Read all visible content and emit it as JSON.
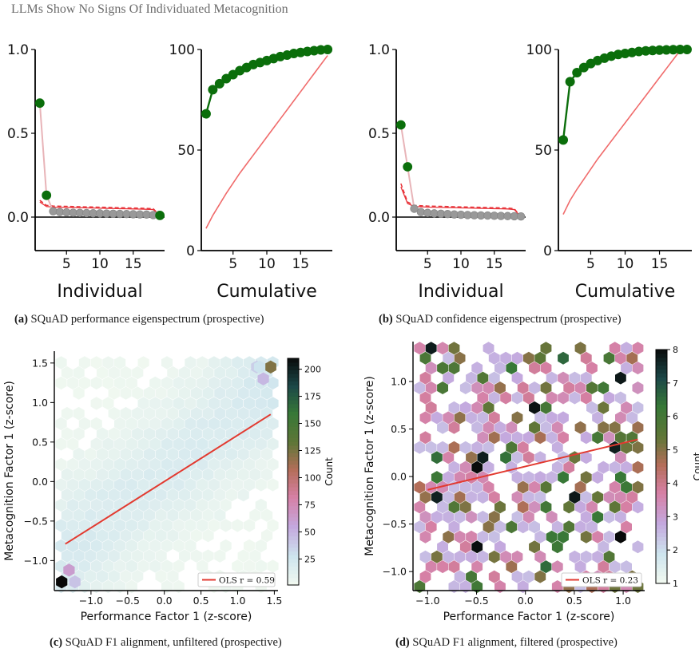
{
  "header": {
    "running_title": "LLMs Show No Signs Of Individuated Metacognition"
  },
  "captions": {
    "a": {
      "label": "(a)",
      "text": "SQuAD performance eigenspectrum (prospective)"
    },
    "b": {
      "label": "(b)",
      "text": "SQuAD confidence eigenspectrum (prospective)"
    },
    "c": {
      "label": "(c)",
      "text": "SQuAD F1 alignment, unfiltered (prospective)"
    },
    "d": {
      "label": "(d)",
      "text": "SQuAD F1 alignment, filtered (prospective)"
    }
  },
  "colors": {
    "green": "#0b6e0b",
    "grey": "#999999",
    "red": "#f06b6b",
    "dashed_red": "#e8343a",
    "pink_line": "#e8b4b8"
  },
  "chart_data": [
    {
      "panel": "a-individual",
      "type": "scatter",
      "xlabel": "Individual",
      "xlim": [
        0.3,
        19.7
      ],
      "ylim": [
        -0.2,
        1.0
      ],
      "xticks": [
        "5",
        "10",
        "15"
      ],
      "yticks": [
        "0.0",
        "0.5",
        "1.0"
      ],
      "components": [
        1,
        2,
        3,
        4,
        5,
        6,
        7,
        8,
        9,
        10,
        11,
        12,
        13,
        14,
        15,
        16,
        17,
        18,
        19
      ],
      "eigenvalues": [
        0.68,
        0.13,
        0.035,
        0.03,
        0.028,
        0.026,
        0.025,
        0.024,
        0.023,
        0.022,
        0.021,
        0.02,
        0.019,
        0.018,
        0.017,
        0.016,
        0.015,
        0.012,
        0.01
      ],
      "significant": [
        1,
        2,
        19
      ],
      "null_threshold": [
        0.1,
        0.07,
        0.066,
        0.065,
        0.064,
        0.063,
        0.062,
        0.061,
        0.06,
        0.059,
        0.058,
        0.057,
        0.056,
        0.055,
        0.054,
        0.053,
        0.052,
        0.05,
        0.01
      ]
    },
    {
      "panel": "a-cumulative",
      "type": "line",
      "xlabel": "Cumulative",
      "xlim": [
        0.3,
        19.7
      ],
      "ylim": [
        0,
        100
      ],
      "xticks": [
        "5",
        "10",
        "15"
      ],
      "yticks": [
        "0",
        "50",
        "100"
      ],
      "components": [
        1,
        2,
        3,
        4,
        5,
        6,
        7,
        8,
        9,
        10,
        11,
        12,
        13,
        14,
        15,
        16,
        17,
        18,
        19
      ],
      "cumulative": [
        68,
        80,
        83,
        85.5,
        87.5,
        89.5,
        91,
        92.5,
        93.5,
        94.5,
        95.5,
        96.5,
        97.2,
        98,
        98.5,
        99,
        99.4,
        99.8,
        100
      ],
      "null_cumulative": [
        11,
        17.5,
        23,
        28.5,
        33.5,
        38.5,
        43,
        47.5,
        52,
        56.5,
        61,
        65.5,
        70,
        74.5,
        79,
        83.5,
        88,
        92.5,
        97
      ]
    },
    {
      "panel": "b-individual",
      "type": "scatter",
      "xlabel": "Individual",
      "xlim": [
        0.3,
        19.7
      ],
      "ylim": [
        -0.2,
        1.0
      ],
      "xticks": [
        "5",
        "10",
        "15"
      ],
      "yticks": [
        "0.0",
        "0.5",
        "1.0"
      ],
      "components": [
        1,
        2,
        3,
        4,
        5,
        6,
        7,
        8,
        9,
        10,
        11,
        12,
        13,
        14,
        15,
        16,
        17,
        18,
        19
      ],
      "eigenvalues": [
        0.55,
        0.3,
        0.05,
        0.03,
        0.025,
        0.022,
        0.02,
        0.018,
        0.016,
        0.014,
        0.012,
        0.011,
        0.01,
        0.009,
        0.008,
        0.007,
        0.006,
        0.005,
        0.004
      ],
      "significant": [
        1,
        2
      ],
      "null_threshold": [
        0.2,
        0.09,
        0.07,
        0.068,
        0.066,
        0.065,
        0.064,
        0.063,
        0.062,
        0.061,
        0.06,
        0.059,
        0.058,
        0.057,
        0.056,
        0.055,
        0.054,
        0.05,
        0.0
      ]
    },
    {
      "panel": "b-cumulative",
      "type": "line",
      "xlabel": "Cumulative",
      "xlim": [
        0.3,
        19.7
      ],
      "ylim": [
        0,
        100
      ],
      "xticks": [
        "5",
        "10",
        "15"
      ],
      "yticks": [
        "0",
        "50",
        "100"
      ],
      "components": [
        1,
        2,
        3,
        4,
        5,
        6,
        7,
        8,
        9,
        10,
        11,
        12,
        13,
        14,
        15,
        16,
        17,
        18,
        19
      ],
      "cumulative": [
        55,
        84,
        88.5,
        91,
        93,
        94.5,
        95.7,
        96.7,
        97.5,
        98,
        98.5,
        99,
        99.3,
        99.5,
        99.7,
        99.8,
        99.9,
        100,
        100
      ],
      "null_cumulative": [
        18,
        25,
        30.5,
        35.5,
        40.5,
        45.5,
        50,
        54.5,
        59,
        63.5,
        68,
        72.5,
        77,
        81.5,
        86,
        90.5,
        95,
        99.5,
        100
      ]
    },
    {
      "panel": "c",
      "type": "heatmap",
      "xlabel": "Performance Factor 1 (z-score)",
      "ylabel": "Metacognition Factor 1 (z-score)",
      "xlim": [
        -1.5,
        1.55
      ],
      "ylim": [
        -1.38,
        1.65
      ],
      "xticks": [
        "−1.0",
        "−0.5",
        "0.0",
        "0.5",
        "1.0",
        "1.5"
      ],
      "yticks": [
        "−1.0",
        "−0.5",
        "0.0",
        "0.5",
        "1.0",
        "1.5"
      ],
      "colorbar": {
        "label": "Count",
        "range": [
          1,
          210
        ],
        "ticks": [
          "25",
          "50",
          "75",
          "100",
          "125",
          "150",
          "175",
          "200"
        ]
      },
      "ols": {
        "label": "OLS  r = 0.59",
        "x": [
          -1.35,
          1.45
        ],
        "y": [
          -0.79,
          0.85
        ]
      },
      "highlight_cells": [
        {
          "x": -1.4,
          "y": -1.27,
          "count": 210
        },
        {
          "x": -1.3,
          "y": -1.12,
          "count": 60
        },
        {
          "x": -1.22,
          "y": -1.27,
          "count": 40
        },
        {
          "x": 1.45,
          "y": 1.45,
          "count": 120
        },
        {
          "x": 1.35,
          "y": 1.3,
          "count": 45
        },
        {
          "x": 1.26,
          "y": 1.45,
          "count": 35
        },
        {
          "x": 1.3,
          "y": 1.45,
          "count": 25
        }
      ]
    },
    {
      "panel": "d",
      "type": "heatmap",
      "xlabel": "Performance Factor 1 (z-score)",
      "ylabel": "Metacognition Factor 1 (z-score)",
      "xlim": [
        -1.15,
        1.22
      ],
      "ylim": [
        -1.2,
        1.42
      ],
      "xticks": [
        "−1.0",
        "−0.5",
        "0.0",
        "0.5",
        "1.0"
      ],
      "yticks": [
        "−1.0",
        "−0.5",
        "0.0",
        "0.5",
        "1.0"
      ],
      "colorbar": {
        "label": "Count",
        "range": [
          1,
          8
        ],
        "ticks": [
          "1",
          "2",
          "3",
          "4",
          "5",
          "6",
          "7",
          "8"
        ]
      },
      "ols": {
        "label": "OLS  r = 0.23",
        "x": [
          -1.0,
          1.15
        ],
        "y": [
          -0.14,
          0.39
        ]
      }
    }
  ]
}
